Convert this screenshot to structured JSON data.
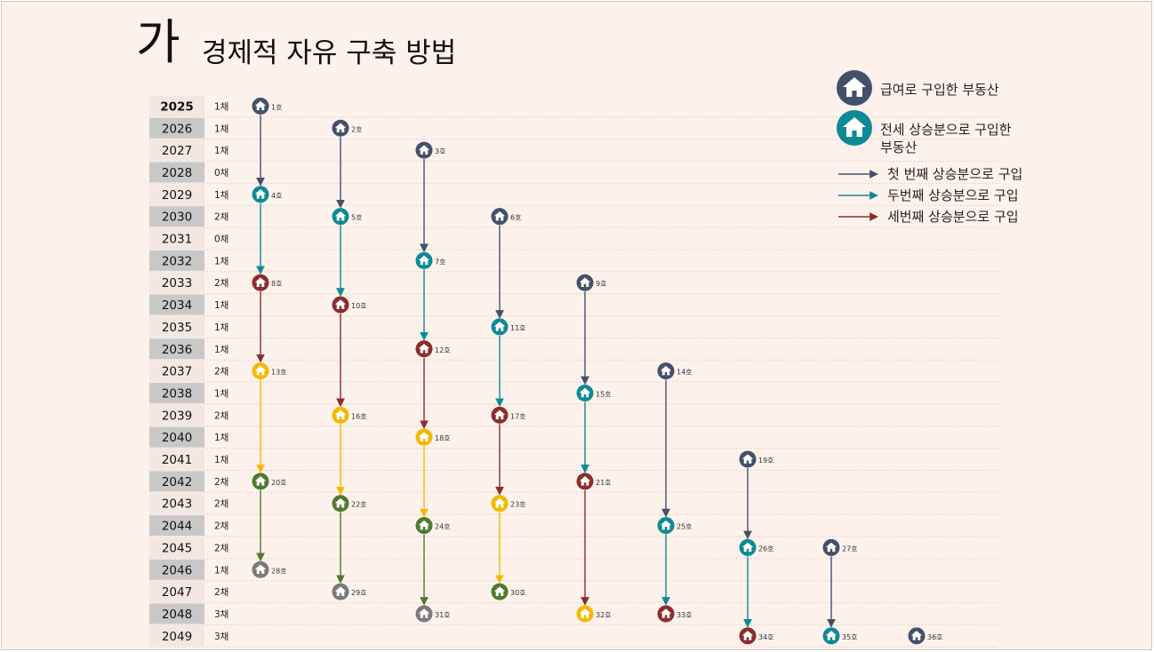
{
  "title": {
    "prefix": "가",
    "main": "경제적 자유 구축 방법"
  },
  "colors": {
    "salary": "#44506a",
    "first": "#0e8a95",
    "second": "#8a2e2c",
    "third": "#f5b800",
    "fourth": "#4f7a30",
    "fifth": "#7a7a7a",
    "row_dark": "#c8c8c8",
    "row_light": "#f3e7e2"
  },
  "legend": {
    "salary_label": "급여로 구입한 부동산",
    "jeonse_label_line1": "전세 상승분으로 구입한",
    "jeonse_label_line2": "부동산",
    "first_label": "첫 번째 상승분으로 구입",
    "second_label": "두번째 상승분으로 구입",
    "third_label": "세번째 상승분으로 구입"
  },
  "years": [
    {
      "year": "2025",
      "count": "1채"
    },
    {
      "year": "2026",
      "count": "1채"
    },
    {
      "year": "2027",
      "count": "1채"
    },
    {
      "year": "2028",
      "count": "0채"
    },
    {
      "year": "2029",
      "count": "1채"
    },
    {
      "year": "2030",
      "count": "2채"
    },
    {
      "year": "2031",
      "count": "0채"
    },
    {
      "year": "2032",
      "count": "1채"
    },
    {
      "year": "2033",
      "count": "2채"
    },
    {
      "year": "2034",
      "count": "1채"
    },
    {
      "year": "2035",
      "count": "1채"
    },
    {
      "year": "2036",
      "count": "1채"
    },
    {
      "year": "2037",
      "count": "2채"
    },
    {
      "year": "2038",
      "count": "1채"
    },
    {
      "year": "2039",
      "count": "2채"
    },
    {
      "year": "2040",
      "count": "1채"
    },
    {
      "year": "2041",
      "count": "1채"
    },
    {
      "year": "2042",
      "count": "2채"
    },
    {
      "year": "2043",
      "count": "2채"
    },
    {
      "year": "2044",
      "count": "2채"
    },
    {
      "year": "2045",
      "count": "2채"
    },
    {
      "year": "2046",
      "count": "1채"
    },
    {
      "year": "2047",
      "count": "2채"
    },
    {
      "year": "2048",
      "count": "3채"
    },
    {
      "year": "2049",
      "count": "3채"
    }
  ],
  "houses": [
    {
      "label": "1호",
      "year": "2025",
      "col": 0,
      "type": "salary"
    },
    {
      "label": "2호",
      "year": "2026",
      "col": 1,
      "type": "salary"
    },
    {
      "label": "3호",
      "year": "2027",
      "col": 2,
      "type": "salary"
    },
    {
      "label": "4호",
      "year": "2029",
      "col": 0,
      "type": "first"
    },
    {
      "label": "5호",
      "year": "2030",
      "col": 1,
      "type": "first"
    },
    {
      "label": "6호",
      "year": "2030",
      "col": 3,
      "type": "salary"
    },
    {
      "label": "7호",
      "year": "2032",
      "col": 2,
      "type": "first"
    },
    {
      "label": "8호",
      "year": "2033",
      "col": 0,
      "type": "second"
    },
    {
      "label": "9호",
      "year": "2033",
      "col": 4,
      "type": "salary"
    },
    {
      "label": "10호",
      "year": "2034",
      "col": 1,
      "type": "second"
    },
    {
      "label": "11호",
      "year": "2035",
      "col": 3,
      "type": "first"
    },
    {
      "label": "12호",
      "year": "2036",
      "col": 2,
      "type": "second"
    },
    {
      "label": "13호",
      "year": "2037",
      "col": 0,
      "type": "third"
    },
    {
      "label": "14호",
      "year": "2037",
      "col": 5,
      "type": "salary"
    },
    {
      "label": "15호",
      "year": "2038",
      "col": 4,
      "type": "first"
    },
    {
      "label": "16호",
      "year": "2039",
      "col": 1,
      "type": "third"
    },
    {
      "label": "17호",
      "year": "2039",
      "col": 3,
      "type": "second"
    },
    {
      "label": "18호",
      "year": "2040",
      "col": 2,
      "type": "third"
    },
    {
      "label": "19호",
      "year": "2041",
      "col": 6,
      "type": "salary"
    },
    {
      "label": "20호",
      "year": "2042",
      "col": 0,
      "type": "fourth"
    },
    {
      "label": "21호",
      "year": "2042",
      "col": 4,
      "type": "second"
    },
    {
      "label": "22호",
      "year": "2043",
      "col": 1,
      "type": "fourth"
    },
    {
      "label": "23호",
      "year": "2043",
      "col": 3,
      "type": "third"
    },
    {
      "label": "24호",
      "year": "2044",
      "col": 2,
      "type": "fourth"
    },
    {
      "label": "25호",
      "year": "2044",
      "col": 5,
      "type": "first"
    },
    {
      "label": "26호",
      "year": "2045",
      "col": 6,
      "type": "first"
    },
    {
      "label": "27호",
      "year": "2045",
      "col": 7,
      "type": "salary"
    },
    {
      "label": "28호",
      "year": "2046",
      "col": 0,
      "type": "fifth"
    },
    {
      "label": "29호",
      "year": "2047",
      "col": 1,
      "type": "fifth"
    },
    {
      "label": "30호",
      "year": "2047",
      "col": 3,
      "type": "fourth"
    },
    {
      "label": "31호",
      "year": "2048",
      "col": 2,
      "type": "fifth"
    },
    {
      "label": "32호",
      "year": "2048",
      "col": 4,
      "type": "third"
    },
    {
      "label": "33호",
      "year": "2048",
      "col": 5,
      "type": "second"
    },
    {
      "label": "34호",
      "year": "2049",
      "col": 6,
      "type": "second"
    },
    {
      "label": "35호",
      "year": "2049",
      "col": 7,
      "type": "first"
    },
    {
      "label": "36호",
      "year": "2049",
      "col": 8,
      "type": "salary"
    }
  ],
  "arrows": [
    {
      "from": "1호",
      "to": "4호",
      "type": "salary"
    },
    {
      "from": "4호",
      "to": "8호",
      "type": "first"
    },
    {
      "from": "8호",
      "to": "13호",
      "type": "second"
    },
    {
      "from": "13호",
      "to": "20호",
      "type": "third"
    },
    {
      "from": "20호",
      "to": "28호",
      "type": "fourth"
    },
    {
      "from": "2호",
      "to": "5호",
      "type": "salary"
    },
    {
      "from": "5호",
      "to": "10호",
      "type": "first"
    },
    {
      "from": "10호",
      "to": "16호",
      "type": "second"
    },
    {
      "from": "16호",
      "to": "22호",
      "type": "third"
    },
    {
      "from": "22호",
      "to": "29호",
      "type": "fourth"
    },
    {
      "from": "3호",
      "to": "7호",
      "type": "salary"
    },
    {
      "from": "7호",
      "to": "12호",
      "type": "first"
    },
    {
      "from": "12호",
      "to": "18호",
      "type": "second"
    },
    {
      "from": "18호",
      "to": "24호",
      "type": "third"
    },
    {
      "from": "24호",
      "to": "31호",
      "type": "fourth"
    },
    {
      "from": "6호",
      "to": "11호",
      "type": "salary"
    },
    {
      "from": "11호",
      "to": "17호",
      "type": "first"
    },
    {
      "from": "17호",
      "to": "23호",
      "type": "second"
    },
    {
      "from": "23호",
      "to": "30호",
      "type": "third"
    },
    {
      "from": "9호",
      "to": "15호",
      "type": "salary"
    },
    {
      "from": "15호",
      "to": "21호",
      "type": "first"
    },
    {
      "from": "21호",
      "to": "32호",
      "type": "second"
    },
    {
      "from": "14호",
      "to": "25호",
      "type": "salary"
    },
    {
      "from": "25호",
      "to": "33호",
      "type": "first"
    },
    {
      "from": "19호",
      "to": "26호",
      "type": "salary"
    },
    {
      "from": "26호",
      "to": "34호",
      "type": "first"
    },
    {
      "from": "27호",
      "to": "35호",
      "type": "salary"
    }
  ]
}
